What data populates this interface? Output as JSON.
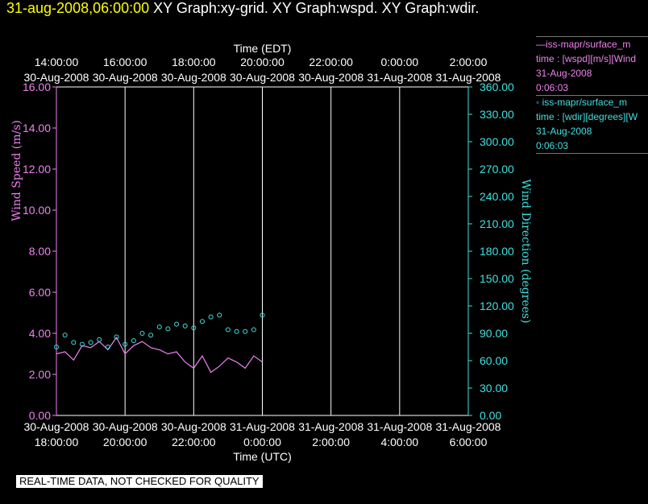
{
  "header": {
    "time": "31-aug-2008,06:00:00",
    "graphs": "XY Graph:xy-grid.  XY Graph:wspd.  XY Graph:wdir."
  },
  "chart_data": {
    "type": "line",
    "top_axis_title": "Time (EDT)",
    "bottom_axis_title": "Time (UTC)",
    "left_axis_title": "Wind Speed (m/s)",
    "right_axis_title": "Wind Direction (degrees)",
    "top_ticks": [
      {
        "time": "14:00:00",
        "date": "30-Aug-2008"
      },
      {
        "time": "16:00:00",
        "date": "30-Aug-2008"
      },
      {
        "time": "18:00:00",
        "date": "30-Aug-2008"
      },
      {
        "time": "20:00:00",
        "date": "30-Aug-2008"
      },
      {
        "time": "22:00:00",
        "date": "30-Aug-2008"
      },
      {
        "time": "0:00:00",
        "date": "31-Aug-2008"
      },
      {
        "time": "2:00:00",
        "date": "31-Aug-2008"
      }
    ],
    "bottom_ticks": [
      {
        "date": "30-Aug-2008",
        "time": "18:00:00"
      },
      {
        "date": "30-Aug-2008",
        "time": "20:00:00"
      },
      {
        "date": "30-Aug-2008",
        "time": "22:00:00"
      },
      {
        "date": "31-Aug-2008",
        "time": "0:00:00"
      },
      {
        "date": "31-Aug-2008",
        "time": "2:00:00"
      },
      {
        "date": "31-Aug-2008",
        "time": "4:00:00"
      },
      {
        "date": "31-Aug-2008",
        "time": "6:00:00"
      }
    ],
    "left_ticks": [
      "0.00",
      "2.00",
      "4.00",
      "6.00",
      "8.00",
      "10.00",
      "12.00",
      "14.00",
      "16.00"
    ],
    "right_ticks": [
      "0.00",
      "30.00",
      "60.00",
      "90.00",
      "120.00",
      "150.00",
      "180.00",
      "210.00",
      "240.00",
      "270.00",
      "300.00",
      "330.00",
      "360.00"
    ],
    "x_range_utc_hours": [
      18,
      30
    ],
    "left_ylim": [
      0,
      16
    ],
    "right_ylim": [
      0,
      360
    ],
    "grid": "vertical lines at each time tick",
    "series": [
      {
        "axis": "left",
        "style": "line",
        "color": "#ee82ee",
        "x_hours": [
          18.0,
          18.25,
          18.5,
          18.75,
          19.0,
          19.25,
          19.5,
          19.75,
          20.0,
          20.25,
          20.5,
          20.75,
          21.0,
          21.25,
          21.5,
          21.75,
          22.0,
          22.25,
          22.5,
          22.75,
          23.0,
          23.25,
          23.5,
          23.75,
          24.0
        ],
        "values": [
          3.0,
          3.1,
          2.7,
          3.4,
          3.3,
          3.6,
          3.2,
          3.8,
          3.0,
          3.4,
          3.6,
          3.3,
          3.2,
          3.0,
          3.1,
          2.6,
          2.3,
          2.9,
          2.1,
          2.4,
          2.8,
          2.6,
          2.3,
          2.9,
          2.6
        ]
      },
      {
        "axis": "right",
        "style": "circles",
        "color": "#40e0e0",
        "x_hours": [
          18.0,
          18.25,
          18.5,
          18.75,
          19.0,
          19.25,
          19.5,
          19.75,
          20.0,
          20.25,
          20.5,
          20.75,
          21.0,
          21.25,
          21.5,
          21.75,
          22.0,
          22.25,
          22.5,
          22.75,
          23.0,
          23.25,
          23.5,
          23.75,
          24.0
        ],
        "values": [
          75,
          88,
          80,
          78,
          80,
          83,
          75,
          86,
          78,
          82,
          90,
          88,
          97,
          95,
          100,
          98,
          96,
          103,
          108,
          110,
          94,
          92,
          92,
          94,
          110
        ]
      }
    ]
  },
  "legend": [
    {
      "title": "—iss-mapr/surface_m",
      "desc": "time : [wspd][m/s][Wind",
      "date": "31-Aug-2008",
      "time": "0:06:03"
    },
    {
      "title": "◦ iss-mapr/surface_m",
      "desc": "time : [wdir][degrees][W",
      "date": "31-Aug-2008",
      "time": "0:06:03"
    }
  ],
  "footer": "REAL-TIME DATA, NOT CHECKED FOR QUALITY",
  "colors": {
    "speed": "#ee82ee",
    "direction": "#40e0e0",
    "title_time": "#ffff00",
    "grid": "#ffffff"
  }
}
